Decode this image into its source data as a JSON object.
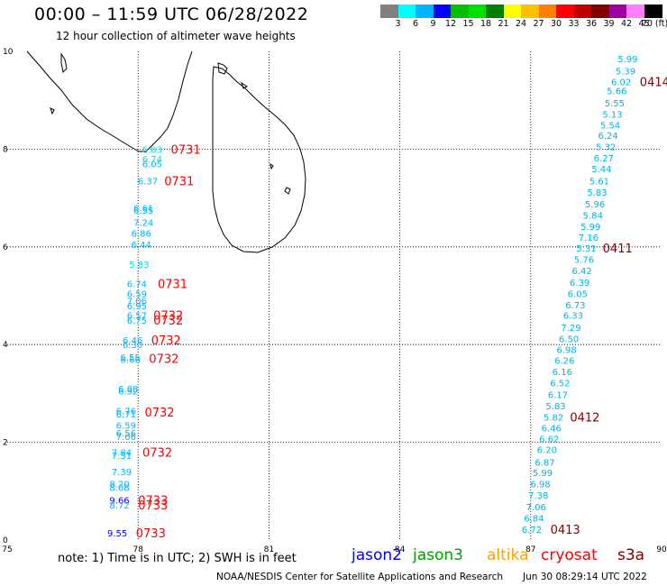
{
  "header": {
    "title": "00:00 – 11:59 UTC 06/28/2022",
    "subtitle": "12 hour collection of altimeter wave heights",
    "colorbar": [
      {
        "label": "3",
        "color": "#808080"
      },
      {
        "label": "6",
        "color": "#00ffff"
      },
      {
        "label": "9",
        "color": "#00b4ff"
      },
      {
        "label": "12",
        "color": "#0000ff"
      },
      {
        "label": "15",
        "color": "#00c000"
      },
      {
        "label": "18",
        "color": "#00e000"
      },
      {
        "label": "21",
        "color": "#008000"
      },
      {
        "label": "24",
        "color": "#ffff00"
      },
      {
        "label": "27",
        "color": "#ffc000"
      },
      {
        "label": "30",
        "color": "#ff8000"
      },
      {
        "label": "33",
        "color": "#ff0000"
      },
      {
        "label": "36",
        "color": "#c00000"
      },
      {
        "label": "39",
        "color": "#800000"
      },
      {
        "label": "42",
        "color": "#a000a0"
      },
      {
        "label": "45",
        "color": "#ff80ff"
      },
      {
        "label": "70 (ft)",
        "color": "#000000"
      }
    ]
  },
  "chart_data": {
    "type": "scatter",
    "xlim": [
      75,
      90
    ],
    "ylim": [
      0,
      10
    ],
    "x_ticks": [
      "75",
      "78",
      "81",
      "84",
      "87",
      "90"
    ],
    "y_ticks": [
      "0",
      "2",
      "4",
      "6",
      "8",
      "10"
    ],
    "grid": true,
    "track_west": {
      "values": [
        {
          "lat": 8.0,
          "lon": 78.3,
          "v": "6.83",
          "c": "#00e0e0"
        },
        {
          "lat": 7.8,
          "lon": 78.3,
          "v": "6.74",
          "c": "#00e0e0"
        },
        {
          "lat": 7.7,
          "lon": 78.3,
          "v": "6.05",
          "c": "#00b4ff"
        },
        {
          "lat": 7.35,
          "lon": 78.2,
          "v": "6.37",
          "c": "#00b4ff"
        },
        {
          "lat": 6.8,
          "lon": 78.1,
          "v": "6.61",
          "c": "#00b4ff"
        },
        {
          "lat": 6.75,
          "lon": 78.1,
          "v": "6.55",
          "c": "#00b4ff"
        },
        {
          "lat": 6.5,
          "lon": 78.1,
          "v": "7.24",
          "c": "#00b4ff"
        },
        {
          "lat": 6.28,
          "lon": 78.05,
          "v": "6.86",
          "c": "#00b4ff"
        },
        {
          "lat": 6.05,
          "lon": 78.05,
          "v": "6.44",
          "c": "#00b4ff"
        },
        {
          "lat": 5.65,
          "lon": 78.0,
          "v": "5.83",
          "c": "#00e0e0"
        },
        {
          "lat": 5.25,
          "lon": 77.95,
          "v": "6.74",
          "c": "#00b4ff"
        },
        {
          "lat": 5.05,
          "lon": 77.95,
          "v": "6.59",
          "c": "#00b4ff"
        },
        {
          "lat": 4.9,
          "lon": 77.95,
          "v": "7.06",
          "c": "#00b4ff"
        },
        {
          "lat": 4.8,
          "lon": 77.95,
          "v": "6.95",
          "c": "#00b4ff"
        },
        {
          "lat": 4.6,
          "lon": 77.95,
          "v": "6.57",
          "c": "#00b4ff"
        },
        {
          "lat": 4.5,
          "lon": 77.95,
          "v": "6.75",
          "c": "#00b4ff"
        },
        {
          "lat": 4.1,
          "lon": 77.85,
          "v": "6.46",
          "c": "#00b4ff"
        },
        {
          "lat": 4.0,
          "lon": 77.85,
          "v": "6.30",
          "c": "#00b4ff"
        },
        {
          "lat": 3.75,
          "lon": 77.8,
          "v": "6.55",
          "c": "#00b4ff"
        },
        {
          "lat": 3.7,
          "lon": 77.8,
          "v": "6.66",
          "c": "#00b4ff"
        },
        {
          "lat": 3.1,
          "lon": 77.75,
          "v": "6.88",
          "c": "#00b4ff"
        },
        {
          "lat": 3.05,
          "lon": 77.75,
          "v": "6.32",
          "c": "#00b4ff"
        },
        {
          "lat": 2.65,
          "lon": 77.7,
          "v": "6.76",
          "c": "#00b4ff"
        },
        {
          "lat": 2.58,
          "lon": 77.7,
          "v": "6.71",
          "c": "#00b4ff"
        },
        {
          "lat": 2.35,
          "lon": 77.7,
          "v": "6.59",
          "c": "#00b4ff"
        },
        {
          "lat": 2.2,
          "lon": 77.7,
          "v": "6.56",
          "c": "#00b4ff"
        },
        {
          "lat": 2.12,
          "lon": 77.7,
          "v": "7.06",
          "c": "#00b4ff"
        },
        {
          "lat": 1.8,
          "lon": 77.6,
          "v": "7.84",
          "c": "#00b4ff"
        },
        {
          "lat": 1.73,
          "lon": 77.6,
          "v": "7.51",
          "c": "#00b4ff"
        },
        {
          "lat": 1.4,
          "lon": 77.6,
          "v": "7.39",
          "c": "#00b4ff"
        },
        {
          "lat": 1.15,
          "lon": 77.55,
          "v": "8.20",
          "c": "#00b4ff"
        },
        {
          "lat": 1.08,
          "lon": 77.55,
          "v": "8.08",
          "c": "#00b4ff"
        },
        {
          "lat": 0.82,
          "lon": 77.55,
          "v": "9.66",
          "c": "#0000ff"
        },
        {
          "lat": 0.72,
          "lon": 77.55,
          "v": "8.72",
          "c": "#00b4ff"
        },
        {
          "lat": 0.15,
          "lon": 77.5,
          "v": "9.55",
          "c": "#0000ff"
        }
      ],
      "times": [
        {
          "lat": 8.0,
          "lon": 78.75,
          "t": "0731"
        },
        {
          "lat": 7.35,
          "lon": 78.6,
          "t": "0731"
        },
        {
          "lat": 5.25,
          "lon": 78.45,
          "t": "0731"
        },
        {
          "lat": 4.6,
          "lon": 78.35,
          "t": "0732"
        },
        {
          "lat": 4.5,
          "lon": 78.35,
          "t": "0732"
        },
        {
          "lat": 4.1,
          "lon": 78.3,
          "t": "0732"
        },
        {
          "lat": 3.72,
          "lon": 78.25,
          "t": "0732"
        },
        {
          "lat": 2.62,
          "lon": 78.15,
          "t": "0732"
        },
        {
          "lat": 1.8,
          "lon": 78.1,
          "t": "0732"
        },
        {
          "lat": 0.82,
          "lon": 78.0,
          "t": "0733"
        },
        {
          "lat": 0.72,
          "lon": 78.0,
          "t": "0733"
        },
        {
          "lat": 0.15,
          "lon": 77.95,
          "t": "0733"
        }
      ]
    },
    "track_east": {
      "values": [
        {
          "lat": 9.85,
          "lon": 89.2,
          "v": "5.99"
        },
        {
          "lat": 9.6,
          "lon": 89.15,
          "v": "5.39"
        },
        {
          "lat": 9.38,
          "lon": 89.05,
          "v": "6.02"
        },
        {
          "lat": 9.2,
          "lon": 88.95,
          "v": "5.66"
        },
        {
          "lat": 8.95,
          "lon": 88.9,
          "v": "5.55"
        },
        {
          "lat": 8.72,
          "lon": 88.85,
          "v": "5.13"
        },
        {
          "lat": 8.5,
          "lon": 88.8,
          "v": "5.54"
        },
        {
          "lat": 8.28,
          "lon": 88.75,
          "v": "6.24"
        },
        {
          "lat": 8.05,
          "lon": 88.7,
          "v": "5.32"
        },
        {
          "lat": 7.82,
          "lon": 88.65,
          "v": "6.27"
        },
        {
          "lat": 7.6,
          "lon": 88.6,
          "v": "5.44"
        },
        {
          "lat": 7.35,
          "lon": 88.55,
          "v": "5.61"
        },
        {
          "lat": 7.12,
          "lon": 88.5,
          "v": "5.83"
        },
        {
          "lat": 6.88,
          "lon": 88.45,
          "v": "5.96"
        },
        {
          "lat": 6.65,
          "lon": 88.4,
          "v": "5.84"
        },
        {
          "lat": 6.42,
          "lon": 88.35,
          "v": "5.99"
        },
        {
          "lat": 6.2,
          "lon": 88.3,
          "v": "7.16"
        },
        {
          "lat": 5.98,
          "lon": 88.25,
          "v": "5.31"
        },
        {
          "lat": 5.75,
          "lon": 88.2,
          "v": "5.76"
        },
        {
          "lat": 5.52,
          "lon": 88.15,
          "v": "6.42"
        },
        {
          "lat": 5.28,
          "lon": 88.1,
          "v": "6.39"
        },
        {
          "lat": 5.05,
          "lon": 88.05,
          "v": "6.05"
        },
        {
          "lat": 4.82,
          "lon": 88.0,
          "v": "6.73"
        },
        {
          "lat": 4.6,
          "lon": 87.95,
          "v": "6.33"
        },
        {
          "lat": 4.35,
          "lon": 87.9,
          "v": "7.29"
        },
        {
          "lat": 4.12,
          "lon": 87.85,
          "v": "6.50"
        },
        {
          "lat": 3.9,
          "lon": 87.8,
          "v": "6.98"
        },
        {
          "lat": 3.68,
          "lon": 87.75,
          "v": "6.26"
        },
        {
          "lat": 3.45,
          "lon": 87.7,
          "v": "6.16"
        },
        {
          "lat": 3.22,
          "lon": 87.65,
          "v": "6.52"
        },
        {
          "lat": 2.98,
          "lon": 87.6,
          "v": "6.17"
        },
        {
          "lat": 2.75,
          "lon": 87.55,
          "v": "5.83"
        },
        {
          "lat": 2.52,
          "lon": 87.5,
          "v": "5.82"
        },
        {
          "lat": 2.3,
          "lon": 87.45,
          "v": "6.46"
        },
        {
          "lat": 2.08,
          "lon": 87.4,
          "v": "6.62"
        },
        {
          "lat": 1.85,
          "lon": 87.35,
          "v": "6.20"
        },
        {
          "lat": 1.6,
          "lon": 87.3,
          "v": "6.87"
        },
        {
          "lat": 1.38,
          "lon": 87.25,
          "v": "5.99"
        },
        {
          "lat": 1.15,
          "lon": 87.2,
          "v": "6.98"
        },
        {
          "lat": 0.92,
          "lon": 87.15,
          "v": "7.38"
        },
        {
          "lat": 0.68,
          "lon": 87.1,
          "v": "7.06"
        },
        {
          "lat": 0.45,
          "lon": 87.05,
          "v": "6.84"
        },
        {
          "lat": 0.22,
          "lon": 87.0,
          "v": "6.72"
        }
      ],
      "times": [
        {
          "lat": 9.38,
          "lon": 89.5,
          "t": "0414"
        },
        {
          "lat": 5.98,
          "lon": 88.65,
          "t": "0411"
        },
        {
          "lat": 2.52,
          "lon": 87.9,
          "t": "0412"
        },
        {
          "lat": 0.22,
          "lon": 87.45,
          "t": "0413"
        }
      ]
    }
  },
  "notes": {
    "note": "note:  1) Time is in UTC;  2) SWH is in feet",
    "legend": [
      {
        "label": "jason2",
        "color": "#0000ff"
      },
      {
        "label": "jason3",
        "color": "#00a000"
      },
      {
        "label": "altika",
        "color": "#ffa000"
      },
      {
        "label": "cryosat",
        "color": "#ff0000"
      },
      {
        "label": "s3a",
        "color": "#800000"
      }
    ],
    "credit": "NOAA/NESDIS Center for Satellite Applications and Research",
    "timestamp": "Jun 30 08:29:14 UTC 2022"
  },
  "colors": {
    "west_time": "#ff0000",
    "east_time": "#800000",
    "east_value": "#00b4e0"
  }
}
